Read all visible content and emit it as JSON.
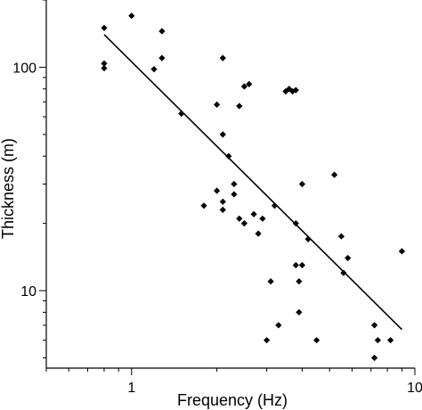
{
  "chart_data": {
    "type": "scatter",
    "title": "",
    "xlabel": "Frequency (Hz)",
    "ylabel": "Thickness (m)",
    "x_scale": "log",
    "y_scale": "log",
    "xlim": [
      0.5,
      10
    ],
    "ylim": [
      4.5,
      200
    ],
    "x_tick_labels": [
      {
        "value": 1,
        "label": "1"
      },
      {
        "value": 10,
        "label": "10"
      }
    ],
    "y_tick_labels": [
      {
        "value": 10,
        "label": "10"
      },
      {
        "value": 100,
        "label": "100"
      }
    ],
    "grid": false,
    "legend": "none",
    "series": [
      {
        "type": "scatter",
        "marker": "diamond",
        "color": "#000000",
        "points": [
          [
            0.8,
            150
          ],
          [
            0.8,
            104
          ],
          [
            0.8,
            99
          ],
          [
            1.0,
            170
          ],
          [
            1.2,
            98
          ],
          [
            1.28,
            145
          ],
          [
            1.28,
            110
          ],
          [
            1.5,
            62
          ],
          [
            1.8,
            24
          ],
          [
            2.0,
            68
          ],
          [
            2.0,
            28
          ],
          [
            2.1,
            110
          ],
          [
            2.1,
            50
          ],
          [
            2.1,
            25
          ],
          [
            2.1,
            23
          ],
          [
            2.2,
            40
          ],
          [
            2.3,
            30
          ],
          [
            2.3,
            27
          ],
          [
            2.4,
            67
          ],
          [
            2.4,
            21
          ],
          [
            2.5,
            82
          ],
          [
            2.5,
            20
          ],
          [
            2.6,
            84
          ],
          [
            2.7,
            22
          ],
          [
            2.8,
            18
          ],
          [
            2.9,
            21
          ],
          [
            3.0,
            6
          ],
          [
            3.1,
            11
          ],
          [
            3.2,
            24
          ],
          [
            3.3,
            7
          ],
          [
            3.5,
            78
          ],
          [
            3.6,
            80
          ],
          [
            3.7,
            78
          ],
          [
            3.8,
            79
          ],
          [
            3.8,
            20
          ],
          [
            3.8,
            13
          ],
          [
            3.9,
            11
          ],
          [
            3.9,
            8
          ],
          [
            4.0,
            30
          ],
          [
            4.0,
            13
          ],
          [
            4.2,
            17
          ],
          [
            4.5,
            6
          ],
          [
            5.2,
            33
          ],
          [
            5.5,
            17.5
          ],
          [
            5.6,
            12
          ],
          [
            5.8,
            14
          ],
          [
            7.2,
            7
          ],
          [
            7.2,
            5
          ],
          [
            7.4,
            6
          ],
          [
            8.2,
            6
          ],
          [
            9.0,
            15
          ]
        ]
      },
      {
        "type": "line",
        "color": "#000000",
        "points": [
          [
            0.8,
            140
          ],
          [
            9.0,
            6.7
          ]
        ]
      }
    ]
  }
}
